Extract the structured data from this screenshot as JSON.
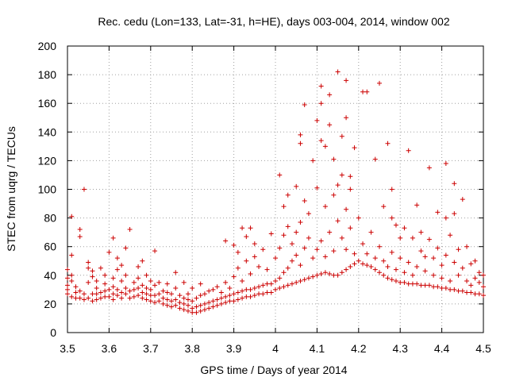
{
  "chart_data": {
    "type": "scatter",
    "title": "Rec. cedu (Lon=133, Lat=-31, h=HE), days 003-004, 2014, window 002",
    "xlabel": "GPS time / Days of year 2014",
    "ylabel": "STEC from uqrg / TECUs",
    "xlim": [
      3.5,
      4.5
    ],
    "ylim": [
      0,
      200
    ],
    "grid": true,
    "marker": "+",
    "marker_color": "#cc0000",
    "x_ticks": [
      {
        "value": 3.5,
        "label": "3.5"
      },
      {
        "value": 3.6,
        "label": "3.6"
      },
      {
        "value": 3.7,
        "label": "3.7"
      },
      {
        "value": 3.8,
        "label": "3.8"
      },
      {
        "value": 3.9,
        "label": "3.9"
      },
      {
        "value": 4.0,
        "label": "4"
      },
      {
        "value": 4.1,
        "label": "4.1"
      },
      {
        "value": 4.2,
        "label": "4.2"
      },
      {
        "value": 4.3,
        "label": "4.3"
      },
      {
        "value": 4.4,
        "label": "4.4"
      },
      {
        "value": 4.5,
        "label": "4.5"
      }
    ],
    "y_ticks": [
      {
        "value": 0,
        "label": "0"
      },
      {
        "value": 20,
        "label": "20"
      },
      {
        "value": 40,
        "label": "40"
      },
      {
        "value": 60,
        "label": "60"
      },
      {
        "value": 80,
        "label": "80"
      },
      {
        "value": 100,
        "label": "100"
      },
      {
        "value": 120,
        "label": "120"
      },
      {
        "value": 140,
        "label": "140"
      },
      {
        "value": 160,
        "label": "160"
      },
      {
        "value": 180,
        "label": "180"
      },
      {
        "value": 200,
        "label": "200"
      }
    ],
    "points": [
      [
        3.5,
        44
      ],
      [
        3.5,
        38
      ],
      [
        3.5,
        33
      ],
      [
        3.5,
        30
      ],
      [
        3.5,
        27
      ],
      [
        3.51,
        25
      ],
      [
        3.51,
        36
      ],
      [
        3.51,
        40
      ],
      [
        3.51,
        54
      ],
      [
        3.51,
        81
      ],
      [
        3.52,
        24
      ],
      [
        3.52,
        28
      ],
      [
        3.52,
        32
      ],
      [
        3.53,
        24
      ],
      [
        3.53,
        29
      ],
      [
        3.53,
        67
      ],
      [
        3.53,
        72
      ],
      [
        3.54,
        23
      ],
      [
        3.54,
        27
      ],
      [
        3.54,
        100
      ],
      [
        3.55,
        24
      ],
      [
        3.55,
        35
      ],
      [
        3.55,
        45
      ],
      [
        3.55,
        49
      ],
      [
        3.56,
        22
      ],
      [
        3.56,
        27
      ],
      [
        3.56,
        39
      ],
      [
        3.56,
        43
      ],
      [
        3.57,
        23
      ],
      [
        3.57,
        27
      ],
      [
        3.57,
        31
      ],
      [
        3.57,
        36
      ],
      [
        3.58,
        24
      ],
      [
        3.58,
        28
      ],
      [
        3.58,
        45
      ],
      [
        3.59,
        25
      ],
      [
        3.59,
        29
      ],
      [
        3.59,
        34
      ],
      [
        3.59,
        40
      ],
      [
        3.6,
        25
      ],
      [
        3.6,
        30
      ],
      [
        3.6,
        56
      ],
      [
        3.61,
        23
      ],
      [
        3.61,
        27
      ],
      [
        3.61,
        32
      ],
      [
        3.61,
        38
      ],
      [
        3.61,
        66
      ],
      [
        3.62,
        26
      ],
      [
        3.62,
        30
      ],
      [
        3.62,
        44
      ],
      [
        3.62,
        52
      ],
      [
        3.63,
        24
      ],
      [
        3.63,
        28
      ],
      [
        3.63,
        36
      ],
      [
        3.63,
        47
      ],
      [
        3.64,
        27
      ],
      [
        3.64,
        31
      ],
      [
        3.64,
        40
      ],
      [
        3.64,
        59
      ],
      [
        3.65,
        24
      ],
      [
        3.65,
        29
      ],
      [
        3.65,
        72
      ],
      [
        3.66,
        25
      ],
      [
        3.66,
        30
      ],
      [
        3.66,
        35
      ],
      [
        3.67,
        26
      ],
      [
        3.67,
        31
      ],
      [
        3.67,
        38
      ],
      [
        3.67,
        46
      ],
      [
        3.68,
        24
      ],
      [
        3.68,
        28
      ],
      [
        3.68,
        33
      ],
      [
        3.68,
        50
      ],
      [
        3.69,
        23
      ],
      [
        3.69,
        27
      ],
      [
        3.69,
        31
      ],
      [
        3.69,
        40
      ],
      [
        3.7,
        22
      ],
      [
        3.7,
        26
      ],
      [
        3.7,
        30
      ],
      [
        3.7,
        36
      ],
      [
        3.71,
        21
      ],
      [
        3.71,
        26
      ],
      [
        3.71,
        33
      ],
      [
        3.71,
        57
      ],
      [
        3.72,
        22
      ],
      [
        3.72,
        27
      ],
      [
        3.72,
        35
      ],
      [
        3.73,
        20
      ],
      [
        3.73,
        24
      ],
      [
        3.73,
        29
      ],
      [
        3.74,
        19
      ],
      [
        3.74,
        23
      ],
      [
        3.74,
        28
      ],
      [
        3.74,
        34
      ],
      [
        3.75,
        18
      ],
      [
        3.75,
        22
      ],
      [
        3.75,
        27
      ],
      [
        3.76,
        19
      ],
      [
        3.76,
        23
      ],
      [
        3.76,
        31
      ],
      [
        3.76,
        42
      ],
      [
        3.77,
        17
      ],
      [
        3.77,
        21
      ],
      [
        3.77,
        26
      ],
      [
        3.78,
        16
      ],
      [
        3.78,
        20
      ],
      [
        3.78,
        24
      ],
      [
        3.78,
        35
      ],
      [
        3.79,
        15
      ],
      [
        3.79,
        19
      ],
      [
        3.79,
        23
      ],
      [
        3.79,
        27
      ],
      [
        3.8,
        14
      ],
      [
        3.8,
        17
      ],
      [
        3.8,
        22
      ],
      [
        3.8,
        31
      ],
      [
        3.81,
        14
      ],
      [
        3.81,
        18
      ],
      [
        3.81,
        24
      ],
      [
        3.82,
        15
      ],
      [
        3.82,
        19
      ],
      [
        3.82,
        26
      ],
      [
        3.82,
        34
      ],
      [
        3.83,
        16
      ],
      [
        3.83,
        20
      ],
      [
        3.83,
        27
      ],
      [
        3.84,
        17
      ],
      [
        3.84,
        21
      ],
      [
        3.84,
        29
      ],
      [
        3.85,
        18
      ],
      [
        3.85,
        22
      ],
      [
        3.85,
        30
      ],
      [
        3.86,
        19
      ],
      [
        3.86,
        23
      ],
      [
        3.86,
        32
      ],
      [
        3.87,
        20
      ],
      [
        3.87,
        24
      ],
      [
        3.87,
        28
      ],
      [
        3.88,
        21
      ],
      [
        3.88,
        25
      ],
      [
        3.88,
        35
      ],
      [
        3.88,
        64
      ],
      [
        3.89,
        22
      ],
      [
        3.89,
        26
      ],
      [
        3.89,
        31
      ],
      [
        3.9,
        22
      ],
      [
        3.9,
        27
      ],
      [
        3.9,
        39
      ],
      [
        3.9,
        61
      ],
      [
        3.91,
        23
      ],
      [
        3.91,
        28
      ],
      [
        3.91,
        45
      ],
      [
        3.91,
        56
      ],
      [
        3.92,
        24
      ],
      [
        3.92,
        29
      ],
      [
        3.92,
        36
      ],
      [
        3.92,
        73
      ],
      [
        3.93,
        25
      ],
      [
        3.93,
        30
      ],
      [
        3.93,
        50
      ],
      [
        3.93,
        67
      ],
      [
        3.94,
        25
      ],
      [
        3.94,
        30
      ],
      [
        3.94,
        41
      ],
      [
        3.94,
        73
      ],
      [
        3.95,
        26
      ],
      [
        3.95,
        31
      ],
      [
        3.95,
        53
      ],
      [
        3.95,
        62
      ],
      [
        3.96,
        27
      ],
      [
        3.96,
        32
      ],
      [
        3.96,
        46
      ],
      [
        3.97,
        27
      ],
      [
        3.97,
        33
      ],
      [
        3.97,
        58
      ],
      [
        3.98,
        28
      ],
      [
        3.98,
        34
      ],
      [
        3.98,
        44
      ],
      [
        3.99,
        28
      ],
      [
        3.99,
        34
      ],
      [
        3.99,
        69
      ],
      [
        4.0,
        30
      ],
      [
        4.0,
        36
      ],
      [
        4.0,
        52
      ],
      [
        4.01,
        31
      ],
      [
        4.01,
        38
      ],
      [
        4.01,
        59
      ],
      [
        4.01,
        110
      ],
      [
        4.02,
        32
      ],
      [
        4.02,
        42
      ],
      [
        4.02,
        68
      ],
      [
        4.02,
        88
      ],
      [
        4.03,
        33
      ],
      [
        4.03,
        45
      ],
      [
        4.03,
        74
      ],
      [
        4.03,
        96
      ],
      [
        4.04,
        34
      ],
      [
        4.04,
        50
      ],
      [
        4.04,
        62
      ],
      [
        4.05,
        35
      ],
      [
        4.05,
        54
      ],
      [
        4.05,
        70
      ],
      [
        4.05,
        102
      ],
      [
        4.06,
        36
      ],
      [
        4.06,
        47
      ],
      [
        4.06,
        77
      ],
      [
        4.06,
        132
      ],
      [
        4.06,
        138
      ],
      [
        4.07,
        37
      ],
      [
        4.07,
        59
      ],
      [
        4.07,
        92
      ],
      [
        4.07,
        159
      ],
      [
        4.08,
        38
      ],
      [
        4.08,
        66
      ],
      [
        4.08,
        83
      ],
      [
        4.09,
        39
      ],
      [
        4.09,
        52
      ],
      [
        4.09,
        120
      ],
      [
        4.1,
        40
      ],
      [
        4.1,
        58
      ],
      [
        4.1,
        101
      ],
      [
        4.1,
        148
      ],
      [
        4.11,
        41
      ],
      [
        4.11,
        64
      ],
      [
        4.11,
        134
      ],
      [
        4.11,
        160
      ],
      [
        4.11,
        172
      ],
      [
        4.12,
        42
      ],
      [
        4.12,
        53
      ],
      [
        4.12,
        88
      ],
      [
        4.12,
        130
      ],
      [
        4.13,
        41
      ],
      [
        4.13,
        70
      ],
      [
        4.13,
        145
      ],
      [
        4.13,
        166
      ],
      [
        4.14,
        40
      ],
      [
        4.14,
        57
      ],
      [
        4.14,
        96
      ],
      [
        4.14,
        121
      ],
      [
        4.15,
        40
      ],
      [
        4.15,
        78
      ],
      [
        4.15,
        103
      ],
      [
        4.15,
        182
      ],
      [
        4.16,
        42
      ],
      [
        4.16,
        66
      ],
      [
        4.16,
        110
      ],
      [
        4.16,
        137
      ],
      [
        4.17,
        44
      ],
      [
        4.17,
        58
      ],
      [
        4.17,
        86
      ],
      [
        4.17,
        150
      ],
      [
        4.17,
        176
      ],
      [
        4.18,
        46
      ],
      [
        4.18,
        73
      ],
      [
        4.18,
        100
      ],
      [
        4.18,
        109
      ],
      [
        4.19,
        48
      ],
      [
        4.19,
        55
      ],
      [
        4.19,
        129
      ],
      [
        4.2,
        50
      ],
      [
        4.2,
        80
      ],
      [
        4.21,
        48
      ],
      [
        4.21,
        62
      ],
      [
        4.21,
        168
      ],
      [
        4.22,
        47
      ],
      [
        4.22,
        55
      ],
      [
        4.22,
        168
      ],
      [
        4.23,
        46
      ],
      [
        4.23,
        70
      ],
      [
        4.24,
        44
      ],
      [
        4.24,
        52
      ],
      [
        4.24,
        121
      ],
      [
        4.25,
        42
      ],
      [
        4.25,
        60
      ],
      [
        4.25,
        174
      ],
      [
        4.26,
        40
      ],
      [
        4.26,
        50
      ],
      [
        4.26,
        88
      ],
      [
        4.27,
        38
      ],
      [
        4.27,
        46
      ],
      [
        4.27,
        132
      ],
      [
        4.28,
        37
      ],
      [
        4.28,
        56
      ],
      [
        4.28,
        80
      ],
      [
        4.28,
        100
      ],
      [
        4.29,
        36
      ],
      [
        4.29,
        44
      ],
      [
        4.29,
        75
      ],
      [
        4.3,
        35
      ],
      [
        4.3,
        52
      ],
      [
        4.3,
        66
      ],
      [
        4.31,
        35
      ],
      [
        4.31,
        42
      ],
      [
        4.31,
        73
      ],
      [
        4.32,
        34
      ],
      [
        4.32,
        49
      ],
      [
        4.32,
        127
      ],
      [
        4.33,
        34
      ],
      [
        4.33,
        40
      ],
      [
        4.33,
        66
      ],
      [
        4.34,
        34
      ],
      [
        4.34,
        46
      ],
      [
        4.34,
        89
      ],
      [
        4.35,
        33
      ],
      [
        4.35,
        57
      ],
      [
        4.35,
        70
      ],
      [
        4.36,
        33
      ],
      [
        4.36,
        43
      ],
      [
        4.36,
        53
      ],
      [
        4.37,
        33
      ],
      [
        4.37,
        65
      ],
      [
        4.37,
        115
      ],
      [
        4.38,
        32
      ],
      [
        4.38,
        40
      ],
      [
        4.38,
        52
      ],
      [
        4.39,
        32
      ],
      [
        4.39,
        59
      ],
      [
        4.39,
        84
      ],
      [
        4.4,
        31
      ],
      [
        4.4,
        38
      ],
      [
        4.4,
        47
      ],
      [
        4.41,
        31
      ],
      [
        4.41,
        54
      ],
      [
        4.41,
        80
      ],
      [
        4.41,
        118
      ],
      [
        4.42,
        30
      ],
      [
        4.42,
        36
      ],
      [
        4.42,
        68
      ],
      [
        4.43,
        30
      ],
      [
        4.43,
        49
      ],
      [
        4.43,
        83
      ],
      [
        4.43,
        104
      ],
      [
        4.44,
        29
      ],
      [
        4.44,
        40
      ],
      [
        4.44,
        58
      ],
      [
        4.45,
        29
      ],
      [
        4.45,
        45
      ],
      [
        4.45,
        93
      ],
      [
        4.46,
        28
      ],
      [
        4.46,
        36
      ],
      [
        4.46,
        60
      ],
      [
        4.47,
        28
      ],
      [
        4.47,
        33
      ],
      [
        4.47,
        48
      ],
      [
        4.48,
        27
      ],
      [
        4.48,
        38
      ],
      [
        4.48,
        50
      ],
      [
        4.49,
        27
      ],
      [
        4.49,
        35
      ],
      [
        4.49,
        42
      ],
      [
        4.5,
        26
      ],
      [
        4.5,
        32
      ],
      [
        4.5,
        40
      ]
    ]
  }
}
